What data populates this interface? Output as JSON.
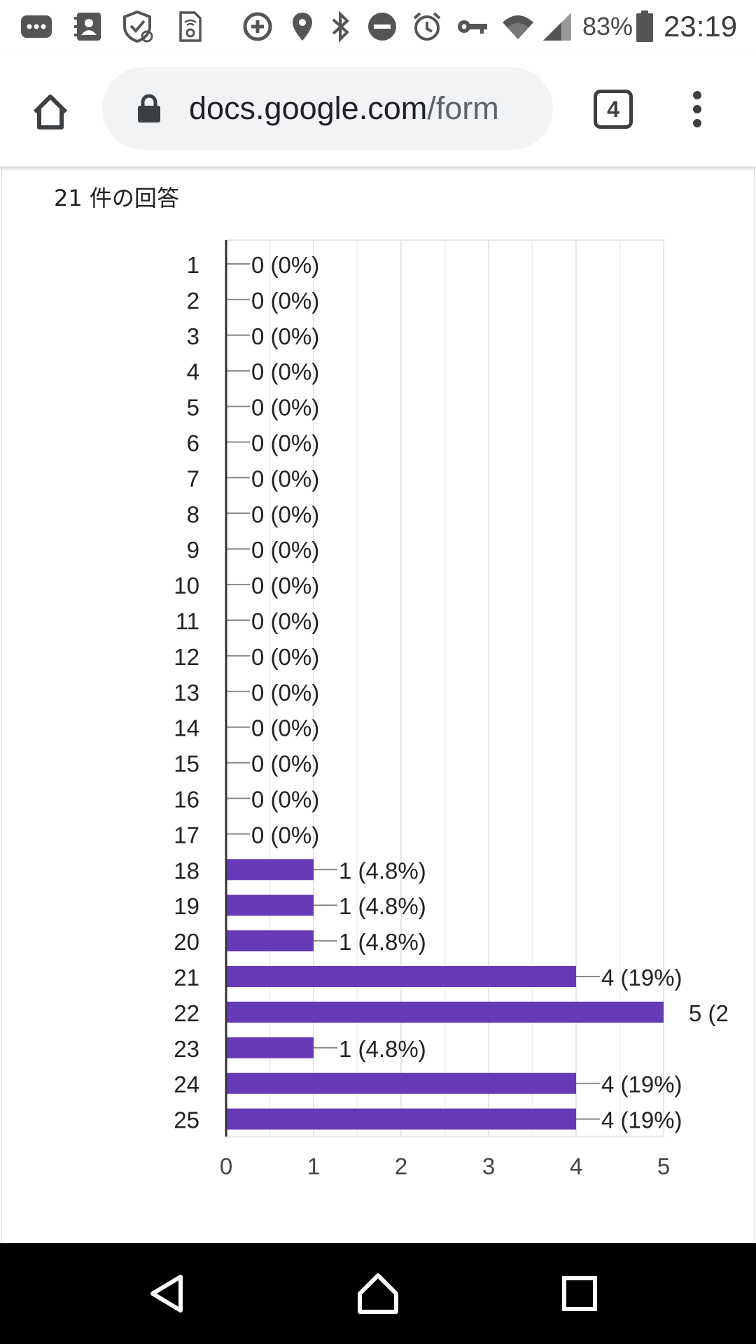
{
  "status_bar": {
    "battery": "83%",
    "time": "23:19",
    "icons": [
      "messages-icon",
      "contacts-icon",
      "shield-sync-icon",
      "sim-settings-icon",
      "data-saver-icon",
      "location-icon",
      "bluetooth-icon",
      "do-not-disturb-icon",
      "alarm-icon",
      "vpn-key-icon",
      "wifi-icon",
      "signal-icon",
      "battery-icon"
    ]
  },
  "browser": {
    "url_host": "docs.google.com",
    "url_path": "/form",
    "tab_count": "4"
  },
  "page": {
    "response_count": "21 件の回答"
  },
  "chart_data": {
    "type": "bar",
    "orientation": "horizontal",
    "categories": [
      "1",
      "2",
      "3",
      "4",
      "5",
      "6",
      "7",
      "8",
      "9",
      "10",
      "11",
      "12",
      "13",
      "14",
      "15",
      "16",
      "17",
      "18",
      "19",
      "20",
      "21",
      "22",
      "23",
      "24",
      "25"
    ],
    "values": [
      0,
      0,
      0,
      0,
      0,
      0,
      0,
      0,
      0,
      0,
      0,
      0,
      0,
      0,
      0,
      0,
      0,
      1,
      1,
      1,
      4,
      5,
      1,
      4,
      4
    ],
    "labels": [
      "0 (0%)",
      "0 (0%)",
      "0 (0%)",
      "0 (0%)",
      "0 (0%)",
      "0 (0%)",
      "0 (0%)",
      "0 (0%)",
      "0 (0%)",
      "0 (0%)",
      "0 (0%)",
      "0 (0%)",
      "0 (0%)",
      "0 (0%)",
      "0 (0%)",
      "0 (0%)",
      "0 (0%)",
      "1 (4.8%)",
      "1 (4.8%)",
      "1 (4.8%)",
      "4 (19%)",
      "5 (2",
      "1 (4.8%)",
      "4 (19%)",
      "4 (19%)"
    ],
    "xticks": [
      "0",
      "1",
      "2",
      "3",
      "4",
      "5"
    ],
    "xlim": [
      0,
      5
    ],
    "grid": true,
    "bar_color": "#673ab7"
  },
  "nav_bar": {
    "buttons": [
      "back-icon",
      "home-icon",
      "recents-icon"
    ]
  }
}
